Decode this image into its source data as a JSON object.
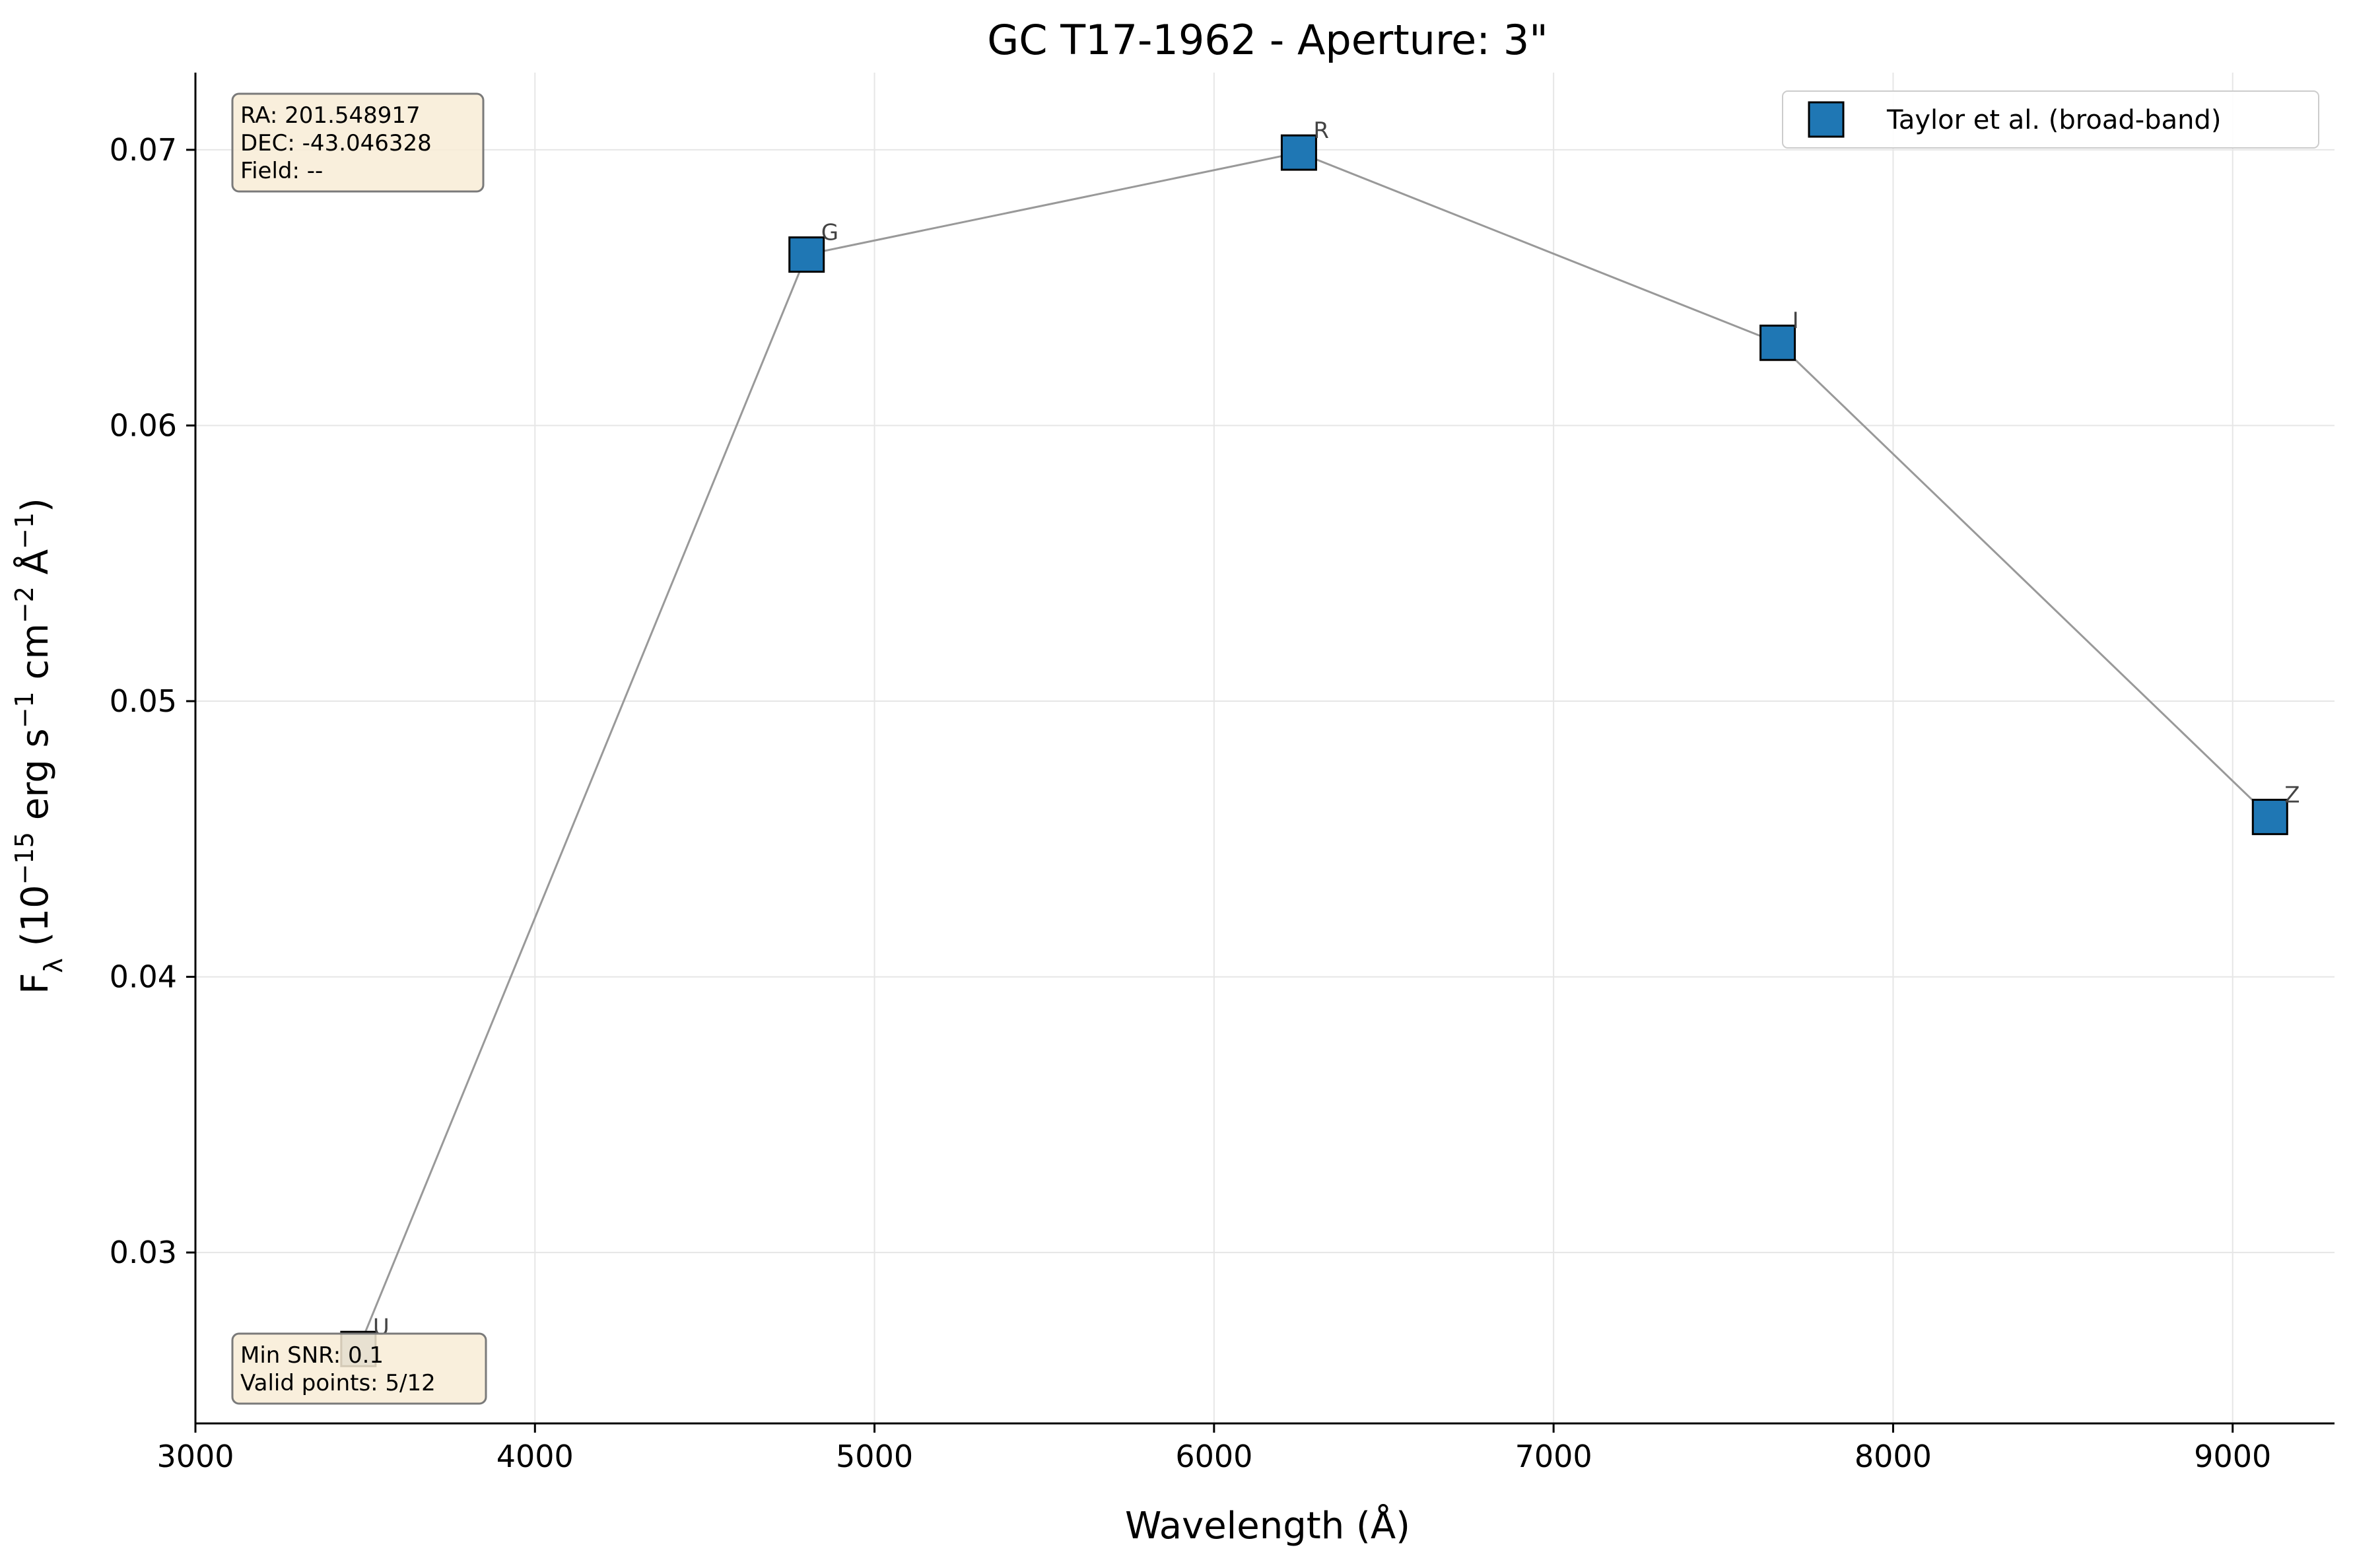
{
  "chart_data": {
    "type": "scatter",
    "title": "GC T17-1962 - Aperture: 3\"",
    "xlabel": "Wavelength (Å)",
    "ylabel": "F_λ (10^-15 erg s^-1 cm^-2 Å^-1)",
    "xlim": [
      3000,
      9300
    ],
    "ylim": [
      0.0238,
      0.0728
    ],
    "x_ticks": [
      3000,
      4000,
      5000,
      6000,
      7000,
      8000,
      9000
    ],
    "x_tick_labels": [
      "3000",
      "4000",
      "5000",
      "6000",
      "7000",
      "8000",
      "9000"
    ],
    "y_ticks": [
      0.03,
      0.04,
      0.05,
      0.06,
      0.07
    ],
    "y_tick_labels": [
      "0.03",
      "0.04",
      "0.05",
      "0.06",
      "0.07"
    ],
    "grid": true,
    "legend_position": "top-right",
    "series": [
      {
        "name": "Taylor et al. (broad-band)",
        "color": "#1f77b4",
        "marker": "square",
        "connecting_line_color": "#999999",
        "points": [
          {
            "band": "U",
            "x": 3480,
            "y": 0.0265,
            "faded": true
          },
          {
            "band": "G",
            "x": 4800,
            "y": 0.0662,
            "faded": false
          },
          {
            "band": "R",
            "x": 6250,
            "y": 0.0699,
            "faded": false
          },
          {
            "band": "I",
            "x": 7660,
            "y": 0.063,
            "faded": false
          },
          {
            "band": "Z",
            "x": 9110,
            "y": 0.0458,
            "faded": false
          }
        ]
      }
    ],
    "info_box_top": {
      "lines": [
        "RA: 201.548917",
        "DEC: -43.046328",
        "Field: --"
      ]
    },
    "info_box_bottom": {
      "lines": [
        "Min SNR: 0.1",
        "Valid points: 5/12"
      ]
    },
    "colors": {
      "marker_faded": "#8aa4b4",
      "info_box_fill": "#f8ecd6",
      "info_box_stroke": "#7a7a7a",
      "grid": "#e6e6e6"
    }
  }
}
